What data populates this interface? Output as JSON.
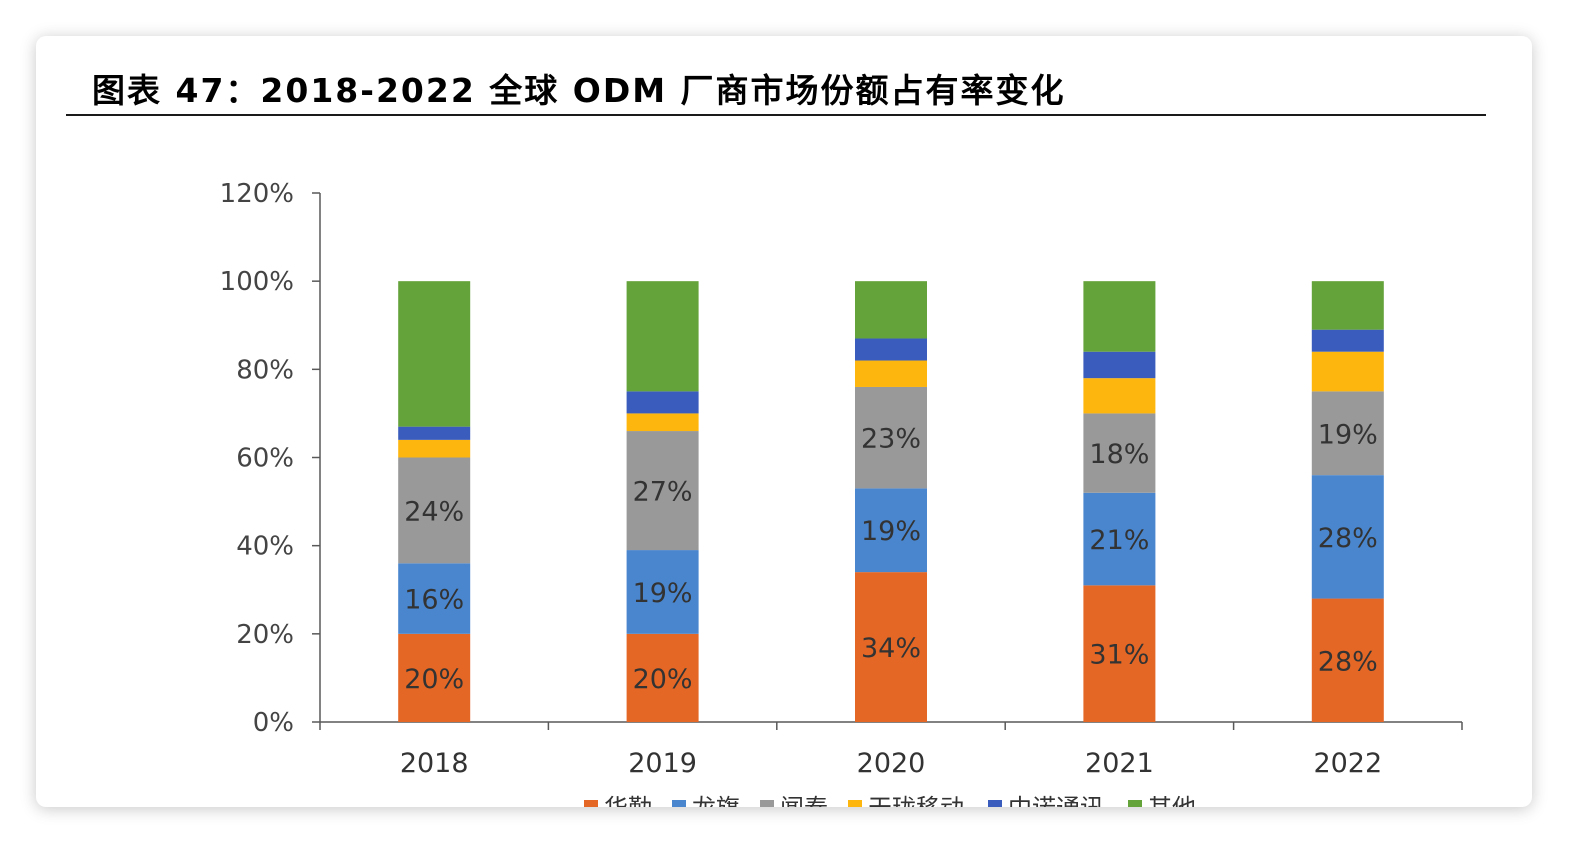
{
  "title": "图表 47：2018-2022 全球 ODM 厂商市场份额占有率变化",
  "chart_data": {
    "type": "bar",
    "stacked": true,
    "categories": [
      "2018",
      "2019",
      "2020",
      "2021",
      "2022"
    ],
    "ylim": [
      0,
      120
    ],
    "yticks": [
      "0%",
      "20%",
      "40%",
      "60%",
      "80%",
      "100%",
      "120%"
    ],
    "legend_position": "bottom",
    "series": [
      {
        "name": "华勤",
        "color": "#E46726",
        "values": [
          20,
          20,
          34,
          31,
          28
        ],
        "labels": [
          "20%",
          "20%",
          "34%",
          "31%",
          "28%"
        ]
      },
      {
        "name": "龙旗",
        "color": "#4A86CE",
        "values": [
          16,
          19,
          19,
          21,
          28
        ],
        "labels": [
          "16%",
          "19%",
          "19%",
          "21%",
          "28%"
        ]
      },
      {
        "name": "闻泰",
        "color": "#999999",
        "values": [
          24,
          27,
          23,
          18,
          19
        ],
        "labels": [
          "24%",
          "27%",
          "23%",
          "18%",
          "19%"
        ]
      },
      {
        "name": "天珑移动",
        "color": "#FDB60E",
        "values": [
          4,
          4,
          6,
          8,
          9
        ],
        "labels": [
          "",
          "",
          "",
          "",
          ""
        ]
      },
      {
        "name": "中诺通讯",
        "color": "#3A5CBC",
        "values": [
          3,
          5,
          5,
          6,
          5
        ],
        "labels": [
          "",
          "",
          "",
          "",
          ""
        ]
      },
      {
        "name": "其他",
        "color": "#64A23A",
        "values": [
          33,
          25,
          13,
          16,
          11
        ],
        "labels": [
          "",
          "",
          "",
          "",
          ""
        ]
      }
    ]
  }
}
